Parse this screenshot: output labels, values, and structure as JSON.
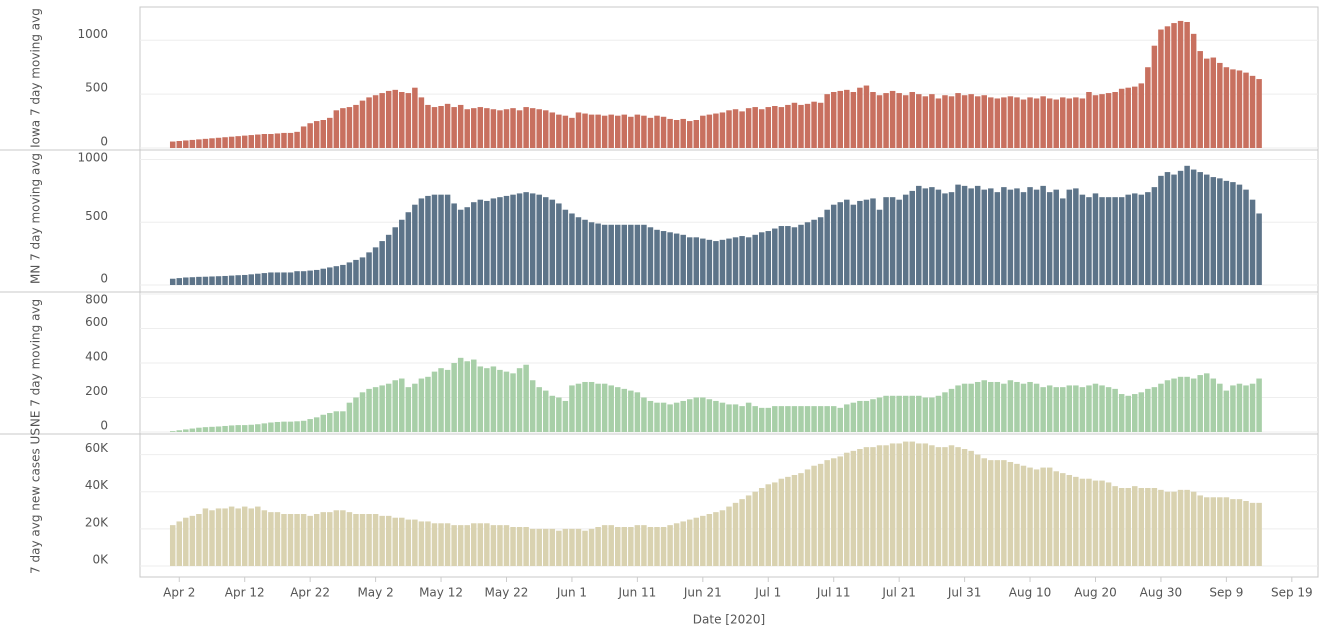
{
  "chart_data": {
    "type": "bar",
    "xlabel": "Date [2020]",
    "xlim": [
      "2020-03-27",
      "2020-09-23"
    ],
    "xticks": [
      {
        "value": "2020-04-02",
        "label": "Apr 2"
      },
      {
        "value": "2020-04-12",
        "label": "Apr 12"
      },
      {
        "value": "2020-04-22",
        "label": "Apr 22"
      },
      {
        "value": "2020-05-02",
        "label": "May 2"
      },
      {
        "value": "2020-05-12",
        "label": "May 12"
      },
      {
        "value": "2020-05-22",
        "label": "May 22"
      },
      {
        "value": "2020-06-01",
        "label": "Jun 1"
      },
      {
        "value": "2020-06-11",
        "label": "Jun 11"
      },
      {
        "value": "2020-06-21",
        "label": "Jun 21"
      },
      {
        "value": "2020-07-01",
        "label": "Jul 1"
      },
      {
        "value": "2020-07-11",
        "label": "Jul 11"
      },
      {
        "value": "2020-07-21",
        "label": "Jul 21"
      },
      {
        "value": "2020-07-31",
        "label": "Jul 31"
      },
      {
        "value": "2020-08-10",
        "label": "Aug 10"
      },
      {
        "value": "2020-08-20",
        "label": "Aug 20"
      },
      {
        "value": "2020-08-30",
        "label": "Aug 30"
      },
      {
        "value": "2020-09-09",
        "label": "Sep 9"
      },
      {
        "value": "2020-09-19",
        "label": "Sep 19"
      }
    ],
    "x": [
      "2020-04-01",
      "2020-04-02",
      "2020-04-03",
      "2020-04-04",
      "2020-04-05",
      "2020-04-06",
      "2020-04-07",
      "2020-04-08",
      "2020-04-09",
      "2020-04-10",
      "2020-04-11",
      "2020-04-12",
      "2020-04-13",
      "2020-04-14",
      "2020-04-15",
      "2020-04-16",
      "2020-04-17",
      "2020-04-18",
      "2020-04-19",
      "2020-04-20",
      "2020-04-21",
      "2020-04-22",
      "2020-04-23",
      "2020-04-24",
      "2020-04-25",
      "2020-04-26",
      "2020-04-27",
      "2020-04-28",
      "2020-04-29",
      "2020-04-30",
      "2020-05-01",
      "2020-05-02",
      "2020-05-03",
      "2020-05-04",
      "2020-05-05",
      "2020-05-06",
      "2020-05-07",
      "2020-05-08",
      "2020-05-09",
      "2020-05-10",
      "2020-05-11",
      "2020-05-12",
      "2020-05-13",
      "2020-05-14",
      "2020-05-15",
      "2020-05-16",
      "2020-05-17",
      "2020-05-18",
      "2020-05-19",
      "2020-05-20",
      "2020-05-21",
      "2020-05-22",
      "2020-05-23",
      "2020-05-24",
      "2020-05-25",
      "2020-05-26",
      "2020-05-27",
      "2020-05-28",
      "2020-05-29",
      "2020-05-30",
      "2020-05-31",
      "2020-06-01",
      "2020-06-02",
      "2020-06-03",
      "2020-06-04",
      "2020-06-05",
      "2020-06-06",
      "2020-06-07",
      "2020-06-08",
      "2020-06-09",
      "2020-06-10",
      "2020-06-11",
      "2020-06-12",
      "2020-06-13",
      "2020-06-14",
      "2020-06-15",
      "2020-06-16",
      "2020-06-17",
      "2020-06-18",
      "2020-06-19",
      "2020-06-20",
      "2020-06-21",
      "2020-06-22",
      "2020-06-23",
      "2020-06-24",
      "2020-06-25",
      "2020-06-26",
      "2020-06-27",
      "2020-06-28",
      "2020-06-29",
      "2020-06-30",
      "2020-07-01",
      "2020-07-02",
      "2020-07-03",
      "2020-07-04",
      "2020-07-05",
      "2020-07-06",
      "2020-07-07",
      "2020-07-08",
      "2020-07-09",
      "2020-07-10",
      "2020-07-11",
      "2020-07-12",
      "2020-07-13",
      "2020-07-14",
      "2020-07-15",
      "2020-07-16",
      "2020-07-17",
      "2020-07-18",
      "2020-07-19",
      "2020-07-20",
      "2020-07-21",
      "2020-07-22",
      "2020-07-23",
      "2020-07-24",
      "2020-07-25",
      "2020-07-26",
      "2020-07-27",
      "2020-07-28",
      "2020-07-29",
      "2020-07-30",
      "2020-07-31",
      "2020-08-01",
      "2020-08-02",
      "2020-08-03",
      "2020-08-04",
      "2020-08-05",
      "2020-08-06",
      "2020-08-07",
      "2020-08-08",
      "2020-08-09",
      "2020-08-10",
      "2020-08-11",
      "2020-08-12",
      "2020-08-13",
      "2020-08-14",
      "2020-08-15",
      "2020-08-16",
      "2020-08-17",
      "2020-08-18",
      "2020-08-19",
      "2020-08-20",
      "2020-08-21",
      "2020-08-22",
      "2020-08-23",
      "2020-08-24",
      "2020-08-25",
      "2020-08-26",
      "2020-08-27",
      "2020-08-28",
      "2020-08-29",
      "2020-08-30",
      "2020-08-31",
      "2020-09-01",
      "2020-09-02",
      "2020-09-03",
      "2020-09-04",
      "2020-09-05",
      "2020-09-06",
      "2020-09-07",
      "2020-09-08",
      "2020-09-09",
      "2020-09-10",
      "2020-09-11",
      "2020-09-12",
      "2020-09-13",
      "2020-09-14"
    ],
    "series": [
      {
        "name": "Iowa 7 day moving avg",
        "color": "#c8705f",
        "ylim": [
          0,
          1300
        ],
        "yticks": [
          0,
          500,
          1000
        ],
        "values": [
          60,
          65,
          70,
          75,
          80,
          85,
          90,
          95,
          100,
          105,
          110,
          115,
          120,
          125,
          130,
          130,
          135,
          140,
          140,
          150,
          200,
          230,
          250,
          260,
          280,
          350,
          370,
          380,
          400,
          440,
          470,
          490,
          510,
          530,
          540,
          520,
          510,
          560,
          470,
          400,
          380,
          390,
          410,
          380,
          400,
          360,
          370,
          380,
          370,
          360,
          350,
          360,
          370,
          350,
          380,
          370,
          360,
          350,
          330,
          310,
          300,
          280,
          330,
          320,
          310,
          310,
          300,
          310,
          300,
          310,
          290,
          310,
          300,
          280,
          300,
          290,
          270,
          260,
          270,
          250,
          260,
          300,
          310,
          320,
          330,
          350,
          360,
          340,
          370,
          380,
          360,
          380,
          390,
          380,
          400,
          420,
          400,
          410,
          430,
          420,
          500,
          520,
          530,
          540,
          520,
          560,
          580,
          520,
          490,
          510,
          530,
          510,
          490,
          520,
          500,
          480,
          500,
          460,
          490,
          480,
          510,
          490,
          500,
          480,
          490,
          470,
          460,
          470,
          480,
          470,
          450,
          470,
          460,
          480,
          460,
          450,
          470,
          460,
          470,
          460,
          520,
          490,
          500,
          510,
          520,
          550,
          560,
          570,
          600,
          750,
          950,
          1100,
          1130,
          1160,
          1180,
          1170,
          1060,
          900,
          830,
          840,
          790,
          750,
          730,
          720,
          700,
          670,
          640
        ]
      },
      {
        "name": "MN 7 day moving avg",
        "color": "#5d7489",
        "ylim": [
          0,
          1060
        ],
        "yticks": [
          0,
          500,
          1000
        ],
        "values": [
          50,
          55,
          60,
          62,
          65,
          66,
          68,
          70,
          72,
          75,
          78,
          80,
          85,
          90,
          95,
          100,
          100,
          100,
          100,
          110,
          110,
          115,
          120,
          130,
          140,
          150,
          160,
          180,
          200,
          220,
          260,
          300,
          350,
          400,
          460,
          520,
          580,
          640,
          690,
          710,
          720,
          720,
          720,
          650,
          600,
          620,
          660,
          680,
          670,
          690,
          700,
          710,
          720,
          730,
          740,
          730,
          720,
          700,
          680,
          650,
          600,
          570,
          540,
          520,
          500,
          490,
          480,
          480,
          480,
          480,
          480,
          480,
          480,
          460,
          440,
          430,
          420,
          410,
          400,
          380,
          380,
          370,
          360,
          350,
          360,
          370,
          380,
          390,
          380,
          400,
          420,
          430,
          450,
          470,
          470,
          460,
          480,
          500,
          520,
          540,
          600,
          640,
          660,
          680,
          640,
          670,
          680,
          690,
          600,
          700,
          700,
          680,
          720,
          750,
          790,
          770,
          780,
          760,
          730,
          740,
          800,
          790,
          770,
          790,
          760,
          770,
          740,
          780,
          760,
          770,
          740,
          780,
          760,
          790,
          740,
          760,
          690,
          760,
          770,
          720,
          700,
          730,
          700,
          700,
          700,
          700,
          720,
          730,
          720,
          740,
          780,
          870,
          900,
          880,
          910,
          950,
          920,
          900,
          880,
          860,
          850,
          830,
          820,
          800,
          760,
          680,
          570
        ]
      },
      {
        "name": "NE 7 day moving avg",
        "color": "#a8cfa8",
        "ylim": [
          0,
          800
        ],
        "yticks": [
          0,
          200,
          400,
          600,
          800
        ],
        "values": [
          5,
          10,
          15,
          20,
          25,
          28,
          30,
          32,
          35,
          38,
          40,
          40,
          42,
          45,
          50,
          55,
          58,
          60,
          60,
          62,
          65,
          75,
          85,
          100,
          110,
          120,
          120,
          170,
          200,
          230,
          250,
          260,
          270,
          280,
          300,
          310,
          260,
          280,
          310,
          320,
          350,
          370,
          360,
          400,
          430,
          410,
          420,
          380,
          370,
          380,
          360,
          350,
          340,
          370,
          390,
          300,
          260,
          240,
          210,
          200,
          180,
          270,
          280,
          290,
          290,
          280,
          280,
          270,
          260,
          250,
          240,
          230,
          200,
          180,
          170,
          170,
          160,
          170,
          180,
          190,
          200,
          200,
          190,
          180,
          170,
          160,
          160,
          150,
          170,
          150,
          140,
          140,
          150,
          150,
          150,
          150,
          150,
          150,
          150,
          150,
          150,
          150,
          140,
          160,
          170,
          180,
          180,
          190,
          200,
          210,
          210,
          210,
          210,
          210,
          210,
          200,
          200,
          210,
          230,
          250,
          270,
          280,
          280,
          290,
          300,
          290,
          290,
          280,
          300,
          290,
          280,
          290,
          280,
          260,
          270,
          260,
          260,
          270,
          270,
          260,
          270,
          280,
          270,
          260,
          250,
          220,
          210,
          220,
          230,
          250,
          260,
          280,
          300,
          310,
          320,
          320,
          310,
          330,
          340,
          310,
          280,
          240,
          270,
          280,
          270,
          280,
          310
        ]
      },
      {
        "name": "7 day avg new cases US",
        "color": "#d9d2b0",
        "ylim": [
          0,
          70000
        ],
        "yticks": [
          {
            "value": 0,
            "label": "0K"
          },
          {
            "value": 20000,
            "label": "20K"
          },
          {
            "value": 40000,
            "label": "40K"
          },
          {
            "value": 60000,
            "label": "60K"
          }
        ],
        "values": [
          22000,
          24000,
          26000,
          27000,
          28000,
          31000,
          30000,
          31000,
          31000,
          32000,
          31000,
          32000,
          31000,
          32000,
          30000,
          29000,
          29000,
          28000,
          28000,
          28000,
          28000,
          27000,
          28000,
          29000,
          29000,
          30000,
          30000,
          29000,
          28000,
          28000,
          28000,
          28000,
          27000,
          27000,
          26000,
          26000,
          25000,
          25000,
          24000,
          24000,
          23000,
          23000,
          23000,
          22000,
          22000,
          22000,
          23000,
          23000,
          23000,
          22000,
          22000,
          22000,
          21000,
          21000,
          21000,
          20000,
          20000,
          20000,
          20000,
          19000,
          20000,
          20000,
          20000,
          19000,
          20000,
          21000,
          22000,
          22000,
          21000,
          21000,
          21000,
          22000,
          22000,
          21000,
          21000,
          21000,
          22000,
          23000,
          24000,
          25000,
          26000,
          27000,
          28000,
          29000,
          30000,
          32000,
          34000,
          36000,
          38000,
          40000,
          42000,
          44000,
          45000,
          47000,
          48000,
          49000,
          50000,
          52000,
          54000,
          55000,
          57000,
          58000,
          59000,
          61000,
          62000,
          63000,
          64000,
          64000,
          65000,
          65000,
          66000,
          66000,
          67000,
          67000,
          66000,
          66000,
          65000,
          64000,
          64000,
          65000,
          64000,
          63000,
          62000,
          60000,
          58000,
          57000,
          57000,
          57000,
          56000,
          55000,
          54000,
          53000,
          52000,
          53000,
          53000,
          51000,
          50000,
          49000,
          48000,
          47000,
          47000,
          46000,
          46000,
          45000,
          43000,
          42000,
          42000,
          43000,
          42000,
          42000,
          42000,
          41000,
          40000,
          40000,
          41000,
          41000,
          40000,
          38000,
          37000,
          37000,
          37000,
          37000,
          36000,
          36000,
          35000,
          34000,
          34000
        ]
      }
    ]
  }
}
